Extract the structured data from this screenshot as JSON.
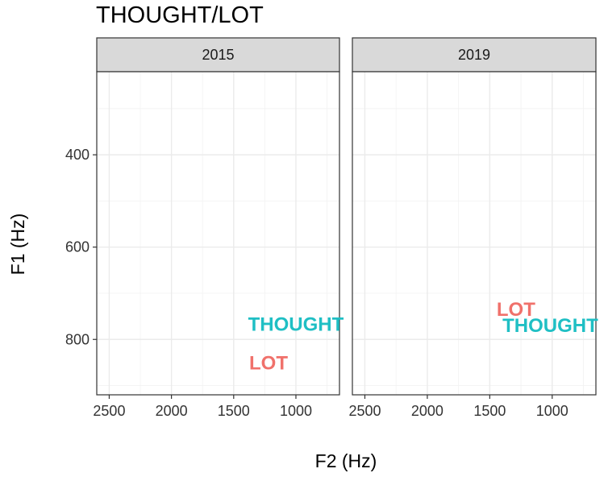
{
  "chart_data": {
    "type": "scatter",
    "title": "THOUGHT/LOT",
    "xlabel": "F2 (Hz)",
    "ylabel": "F1 (Hz)",
    "x_reversed": true,
    "y_reversed": true,
    "xlim": [
      2600,
      650
    ],
    "ylim": [
      220,
      920
    ],
    "x_ticks": [
      2500,
      2000,
      1500,
      1000
    ],
    "x_tick_labels": [
      "2500",
      "2000",
      "1500",
      "1000"
    ],
    "y_ticks": [
      400,
      600,
      800
    ],
    "y_tick_labels": [
      "400",
      "600",
      "800"
    ],
    "grid": true,
    "legend": "none",
    "series_colors": {
      "THOUGHT": "#1fbfc4",
      "LOT": "#f0716b"
    },
    "panels": [
      {
        "strip_label": "2015",
        "points": [
          {
            "label": "THOUGHT",
            "f2": 1000,
            "f1": 768
          },
          {
            "label": "LOT",
            "f2": 1220,
            "f1": 852
          }
        ]
      },
      {
        "strip_label": "2019",
        "points": [
          {
            "label": "LOT",
            "f2": 1290,
            "f1": 736
          },
          {
            "label": "THOUGHT",
            "f2": 1015,
            "f1": 771
          }
        ]
      }
    ]
  }
}
